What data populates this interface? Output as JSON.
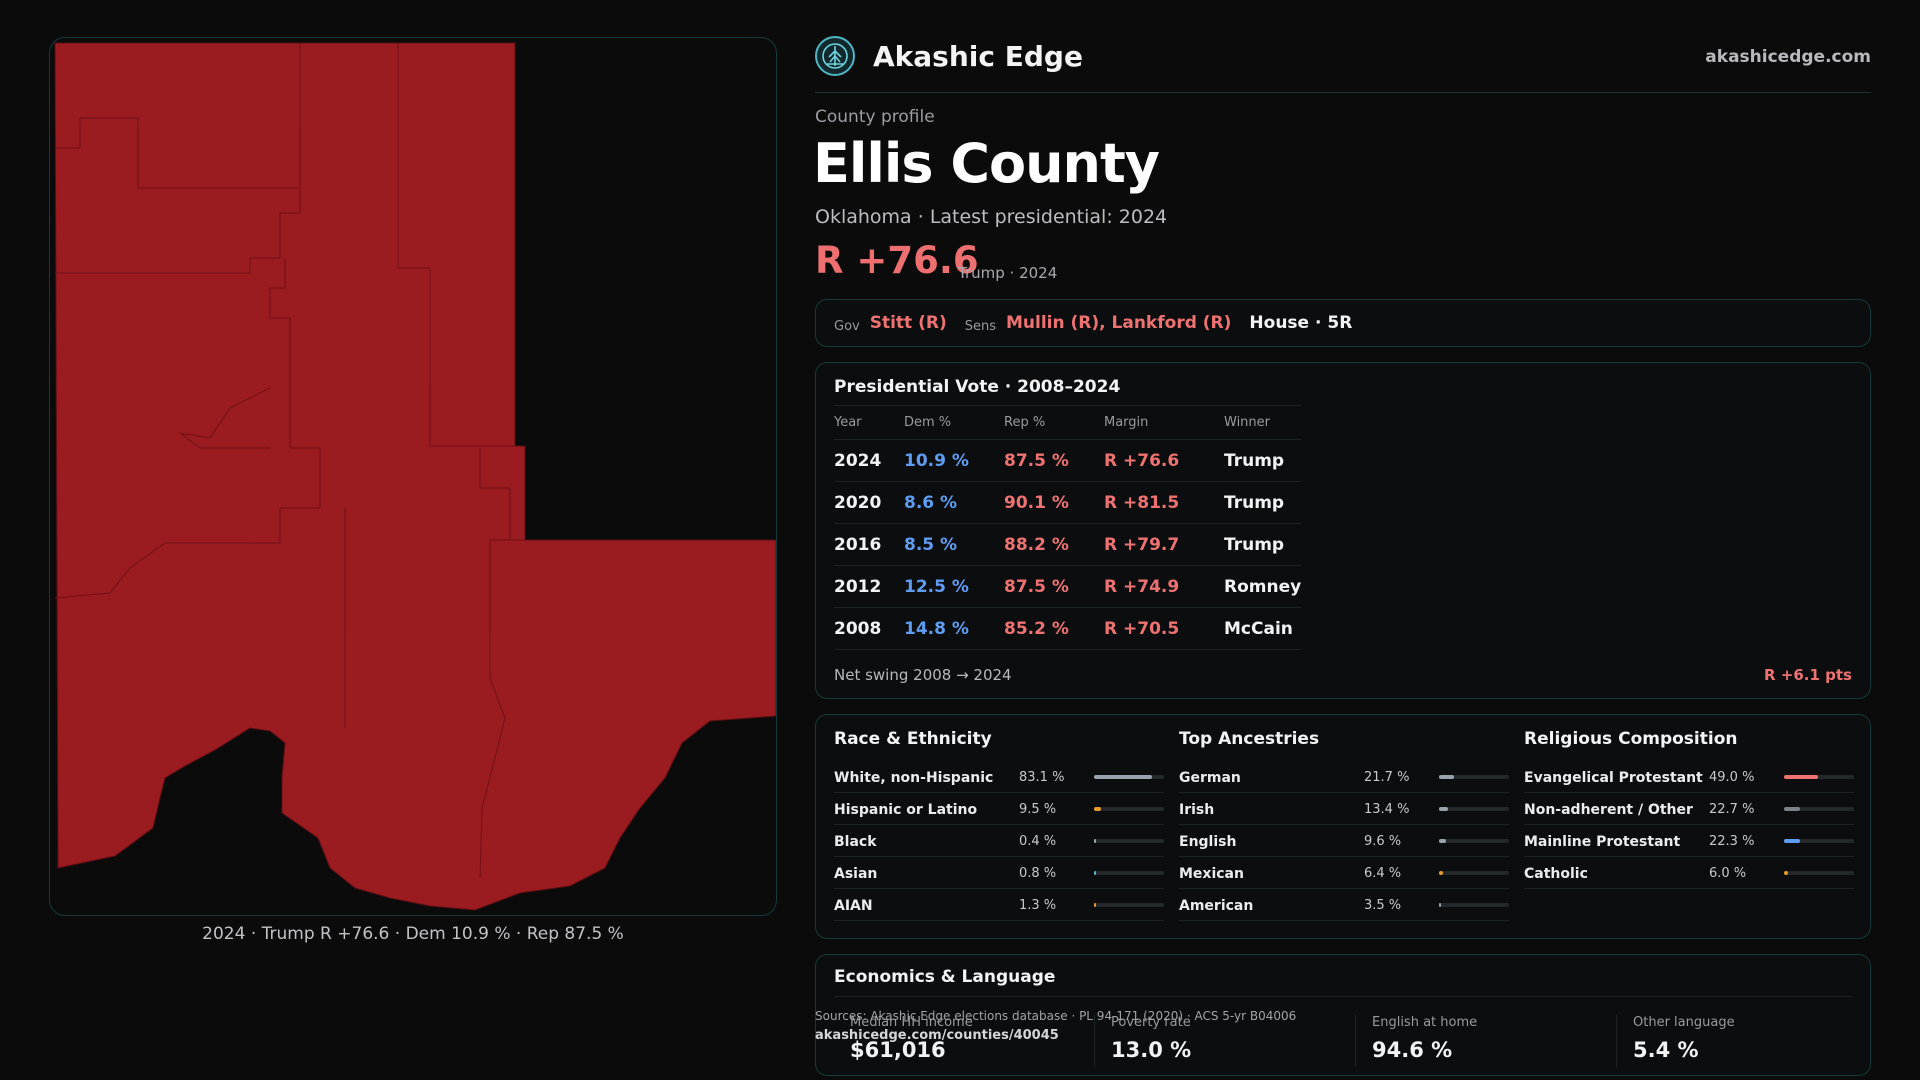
{
  "brand": {
    "name": "Akashic Edge",
    "url": "akashicedge.com",
    "logo_icon": "tree-globe-icon"
  },
  "profile": {
    "eyebrow": "County profile",
    "county": "Ellis County",
    "subline": "Oklahoma · Latest presidential: 2024",
    "margin": "R +76.6",
    "margin_note": "Trump · 2024"
  },
  "officials": {
    "gov_key": "Gov",
    "gov": "Stitt (R)",
    "sens_key": "Sens",
    "sens": "Mullin (R), Lankford (R)",
    "house": "House · 5R"
  },
  "presidential": {
    "title": "Presidential Vote · 2008–2024",
    "headers": [
      "Year",
      "Dem %",
      "Rep %",
      "Margin",
      "Winner"
    ],
    "rows": [
      {
        "year": "2024",
        "dem": "10.9 %",
        "rep": "87.5 %",
        "margin": "R +76.6",
        "winner": "Trump"
      },
      {
        "year": "2020",
        "dem": "8.6 %",
        "rep": "90.1 %",
        "margin": "R +81.5",
        "winner": "Trump"
      },
      {
        "year": "2016",
        "dem": "8.5 %",
        "rep": "88.2 %",
        "margin": "R +79.7",
        "winner": "Trump"
      },
      {
        "year": "2012",
        "dem": "12.5 %",
        "rep": "87.5 %",
        "margin": "R +74.9",
        "winner": "Romney"
      },
      {
        "year": "2008",
        "dem": "14.8 %",
        "rep": "85.2 %",
        "margin": "R +70.5",
        "winner": "McCain"
      }
    ],
    "swing_label": "Net swing 2008 → 2024",
    "swing_value": "R +6.1 pts"
  },
  "race": {
    "title": "Race & Ethnicity",
    "items": [
      {
        "label": "White, non-Hispanic",
        "value": "83.1 %",
        "pct": 83.1,
        "color": "#9aa3ad"
      },
      {
        "label": "Hispanic or Latino",
        "value": "9.5 %",
        "pct": 9.5,
        "color": "#e89a2e"
      },
      {
        "label": "Black",
        "value": "0.4 %",
        "pct": 0.4,
        "color": "#9aa3ad"
      },
      {
        "label": "Asian",
        "value": "0.8 %",
        "pct": 0.8,
        "color": "#4fb6c4"
      },
      {
        "label": "AIAN",
        "value": "1.3 %",
        "pct": 1.3,
        "color": "#e89a2e"
      }
    ]
  },
  "ancestry": {
    "title": "Top Ancestries",
    "items": [
      {
        "label": "German",
        "value": "21.7 %",
        "pct": 21.7,
        "color": "#9aa3ad"
      },
      {
        "label": "Irish",
        "value": "13.4 %",
        "pct": 13.4,
        "color": "#9aa3ad"
      },
      {
        "label": "English",
        "value": "9.6 %",
        "pct": 9.6,
        "color": "#9aa3ad"
      },
      {
        "label": "Mexican",
        "value": "6.4 %",
        "pct": 6.4,
        "color": "#e89a2e"
      },
      {
        "label": "American",
        "value": "3.5 %",
        "pct": 3.5,
        "color": "#9aa3ad"
      }
    ]
  },
  "religion": {
    "title": "Religious Composition",
    "items": [
      {
        "label": "Evangelical Protestant",
        "value": "49.0 %",
        "pct": 49.0,
        "color": "#ef7272"
      },
      {
        "label": "Non-adherent / Other",
        "value": "22.7 %",
        "pct": 22.7,
        "color": "#7d8288"
      },
      {
        "label": "Mainline Protestant",
        "value": "22.3 %",
        "pct": 22.3,
        "color": "#5f9df3"
      },
      {
        "label": "Catholic",
        "value": "6.0 %",
        "pct": 6.0,
        "color": "#e89a2e"
      }
    ]
  },
  "economics": {
    "title": "Economics & Language",
    "cells": [
      {
        "label": "Median HH income",
        "value": "$61,016"
      },
      {
        "label": "Poverty rate",
        "value": "13.0 %"
      },
      {
        "label": "English at home",
        "value": "94.6 %"
      },
      {
        "label": "Other language",
        "value": "5.4 %"
      }
    ]
  },
  "sources": {
    "text": "Sources: Akashic Edge elections database · PL 94-171 (2020) · ACS 5-yr B04006",
    "url": "akashicedge.com/counties/40045"
  },
  "map": {
    "caption": "2024 · Trump R +76.6 · Dem 10.9 % · Rep 87.5 %",
    "fill": "#9a1b20"
  }
}
